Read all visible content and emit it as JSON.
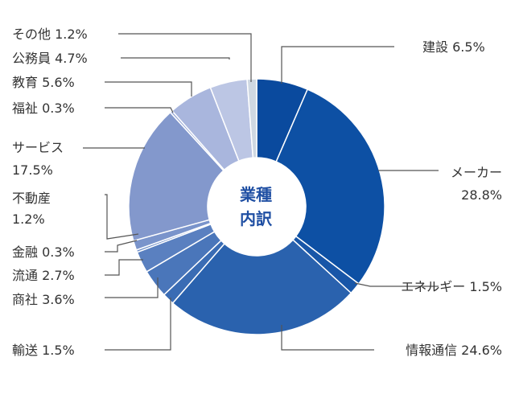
{
  "chart_data": {
    "type": "pie",
    "donut": true,
    "center_label": [
      "業種",
      "内訳"
    ],
    "unit": "%",
    "categories": [
      "建設",
      "メーカー",
      "エネルギー",
      "情報通信",
      "輸送",
      "商社",
      "流通",
      "金融",
      "不動産",
      "サービス",
      "福祉",
      "教育",
      "公務員",
      "その他"
    ],
    "values": [
      6.5,
      28.8,
      1.5,
      24.6,
      1.5,
      3.6,
      2.7,
      0.3,
      1.2,
      17.5,
      0.3,
      5.6,
      4.7,
      1.2
    ],
    "colors": [
      "#0a4a9e",
      "#0d50a4",
      "#1856a8",
      "#2a62ae",
      "#3a6cb4",
      "#4a76ba",
      "#5a80c0",
      "#6a8ac6",
      "#7a94cb",
      "#8398cc",
      "#99a9d6",
      "#a9b6dd",
      "#bcc6e4",
      "#cfd8e2"
    ],
    "labels": [
      {
        "name": "建設",
        "value": "6.5%"
      },
      {
        "name": "メーカー",
        "value": "28.8%"
      },
      {
        "name": "エネルギー",
        "value": "1.5%"
      },
      {
        "name": "情報通信",
        "value": "24.6%"
      },
      {
        "name": "輸送",
        "value": "1.5%"
      },
      {
        "name": "商社",
        "value": "3.6%"
      },
      {
        "name": "流通",
        "value": "2.7%"
      },
      {
        "name": "金融",
        "value": "0.3%"
      },
      {
        "name": "不動産",
        "value": "1.2%"
      },
      {
        "name": "サービス",
        "value": "17.5%"
      },
      {
        "name": "福祉",
        "value": "0.3%"
      },
      {
        "name": "教育",
        "value": "5.6%"
      },
      {
        "name": "公務員",
        "value": "4.7%"
      },
      {
        "name": "その他",
        "value": "1.2%"
      }
    ]
  }
}
